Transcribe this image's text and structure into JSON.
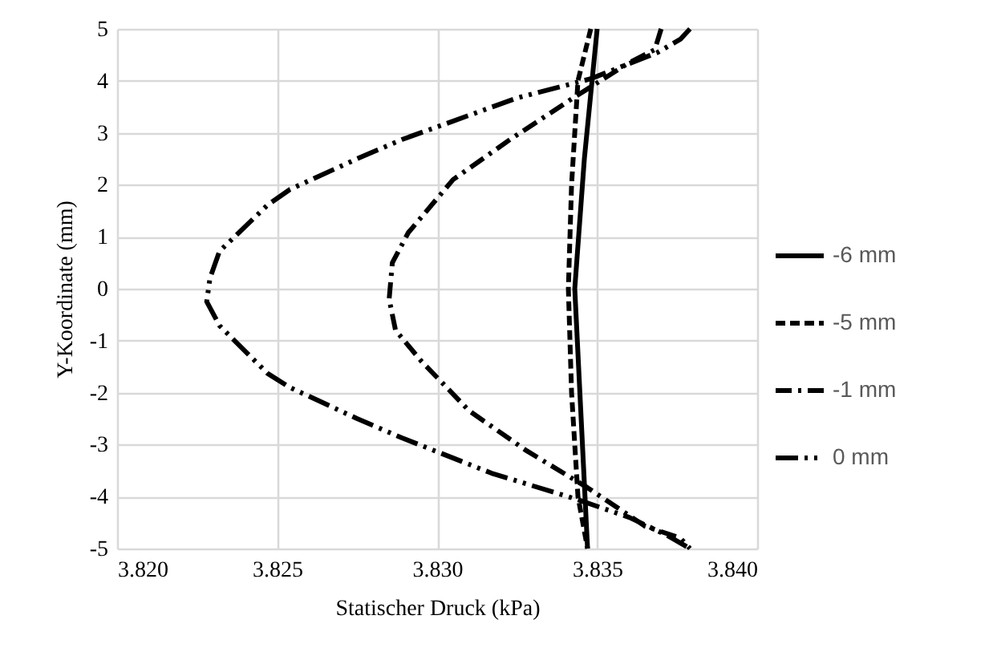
{
  "chart_data": {
    "type": "line",
    "xlabel": "Statischer Druck (kPa)",
    "ylabel": "Y-Koordinate (mm)",
    "xlim": [
      3.82,
      3.84
    ],
    "xticks": [
      {
        "value": 3.82,
        "label": "3.820"
      },
      {
        "value": 3.825,
        "label": "3.825"
      },
      {
        "value": 3.83,
        "label": "3.830"
      },
      {
        "value": 3.835,
        "label": "3.835"
      },
      {
        "value": 3.84,
        "label": "3.840"
      }
    ],
    "ylim": [
      -5,
      5
    ],
    "yticks": [
      -5,
      -4,
      -3,
      -2,
      -1,
      0,
      1,
      2,
      3,
      4,
      5
    ],
    "grid": true,
    "legend": "right",
    "marker": "none",
    "series": [
      {
        "name": "-6 mm",
        "color": "#000000",
        "line_style": "solid",
        "x": [
          3.835,
          3.8346,
          3.8343,
          3.8345,
          3.8347
        ],
        "values": [
          5,
          2.5,
          0,
          -2.5,
          -5
        ]
      },
      {
        "name": "-5 mm",
        "color": "#000000",
        "line_style": "dashed",
        "x": [
          3.8348,
          3.8344,
          3.8342,
          3.8341,
          3.8342,
          3.8344,
          3.8347
        ],
        "values": [
          5,
          4,
          2,
          0,
          -2,
          -4,
          -5
        ]
      },
      {
        "name": "-1 mm",
        "color": "#000000",
        "line_style": "dashed",
        "x": [
          3.837,
          3.8368,
          3.836,
          3.8342,
          3.8323,
          3.8305,
          3.8291,
          3.8286,
          3.8285,
          3.8287,
          3.8295,
          3.831,
          3.8328,
          3.8347,
          3.8365,
          3.8376,
          3.8379
        ],
        "values": [
          5,
          4.6,
          4.35,
          3.65,
          2.88,
          2.1,
          1.08,
          0.5,
          -0.2,
          -0.8,
          -1.39,
          -2.35,
          -3.12,
          -3.83,
          -4.57,
          -4.8,
          -5
        ]
      },
      {
        "name": "0 mm",
        "color": "#000000",
        "line_style": "dashed",
        "x": [
          3.8379,
          3.8376,
          3.8369,
          3.8348,
          3.8325,
          3.8289,
          3.8275,
          3.8254,
          3.8247,
          3.8232,
          3.8229,
          3.8228,
          3.8232,
          3.8247,
          3.8254,
          3.8275,
          3.8289,
          3.8317,
          3.8344,
          3.836,
          3.8372,
          3.8379
        ],
        "values": [
          5,
          4.8,
          4.55,
          4.04,
          3.67,
          2.87,
          2.5,
          1.91,
          1.61,
          0.72,
          0.2,
          -0.25,
          -0.71,
          -1.63,
          -1.9,
          -2.5,
          -2.87,
          -3.55,
          -4.06,
          -4.4,
          -4.75,
          -5
        ]
      }
    ]
  }
}
